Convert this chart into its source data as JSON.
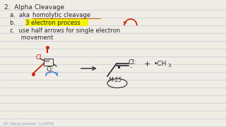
{
  "bg_color": "#f0ede6",
  "line_color": "#c8c8d8",
  "title": "2.  Alpha Cleavage",
  "line_a_prefix": "a.  aka ",
  "line_a_underlined": "homolytic cleavage",
  "line_b_prefix": "b.  ",
  "line_b_highlighted": "3 electron process",
  "line_c1": "c.  use half arrows for single electron",
  "line_c2": "      movement",
  "watermark": "Dr. Doug Jackson  (c)2016",
  "text_color": "#2a2a2a",
  "highlight_yellow": "#f5f500",
  "underline_color": "#cc7700",
  "red_color": "#cc2200",
  "blue_color": "#4477cc",
  "arrow_color": "#444444",
  "radical_red": "#cc2200"
}
